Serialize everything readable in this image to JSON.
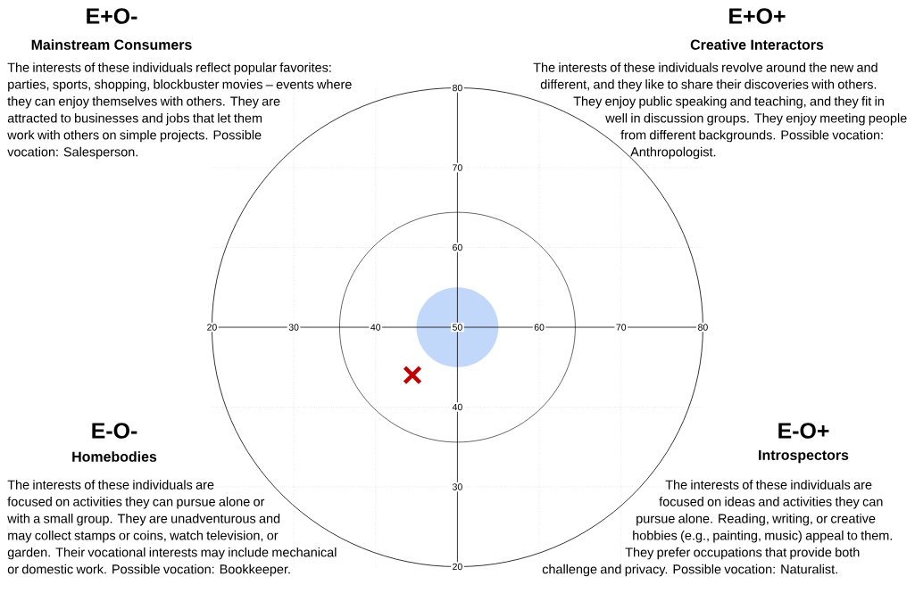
{
  "chart_data": {
    "type": "scatter",
    "x": [
      44.5
    ],
    "values": [
      44
    ],
    "color": "#c00000",
    "marker": "cross",
    "xlim": [
      20,
      80
    ],
    "ylim": [
      20,
      80
    ],
    "xticks": [
      20,
      30,
      40,
      50,
      60,
      70,
      80
    ],
    "yticks": [
      20,
      30,
      40,
      {
        "value": 50,
        "label": null
      },
      60,
      70,
      80
    ],
    "grid": true,
    "annotations": [
      "E+O-",
      "Mainstream Consumers",
      "The interests of these individuals reflect popular favorites: parties, sports, shopping, blockbuster movies – events where they can enjoy themselves with others. They are attracted to businesses and jobs that let them work with others on simple projects. Possible vocation: Salesperson.",
      "E+O+",
      "Creative Interactors",
      "The interests of these individuals revolve around the new and different, and they like to share their discoveries with others. They enjoy public speaking and teaching, and they fit in well in discussion groups. They enjoy meeting people from different backgrounds. Possible vocation: Anthropologist.",
      "E-O-",
      "Homebodies",
      "The interests of these individuals are focused on activities they can pursue alone or with a small group. They are unadventurous and may collect stamps or coins, watch television, or garden. Their vocational interests may include mechanical or domestic work. Possible vocation: Bookkeeper.",
      "E-O+",
      "Introspectors",
      "The interests of these individuals are focused on ideas and activities they can pursue alone. Reading, writing, or creative hobbies (e.g., painting, music) appeal to them. They prefer occupations that provide both challenge and privacy. Possible vocation: Naturalist."
    ]
  }
}
